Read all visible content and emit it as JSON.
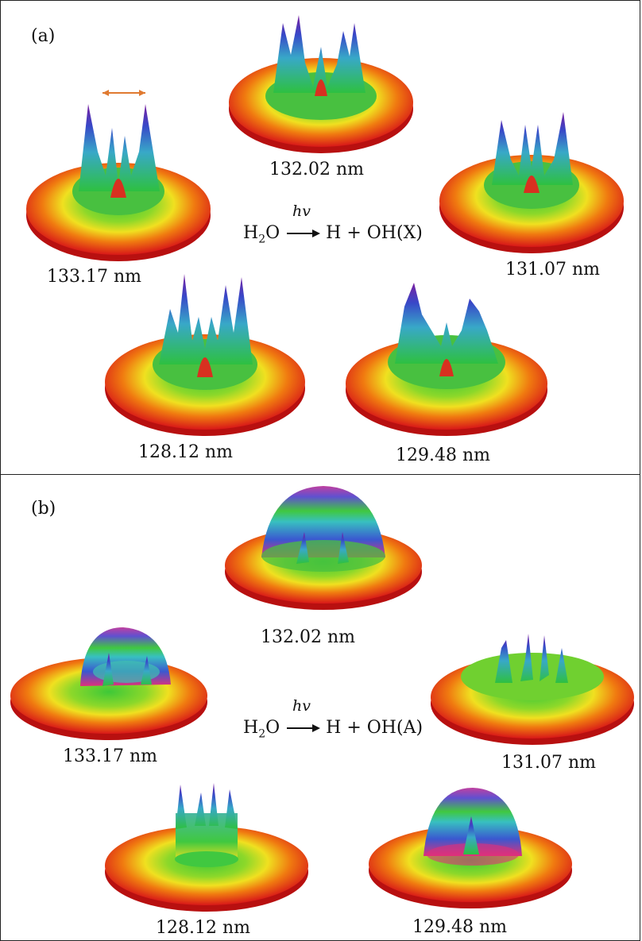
{
  "colors": {
    "rim_outer": "#d81818",
    "ring_orange": "#f07a10",
    "ring_yellow": "#f0e020",
    "ring_green": "#39c035",
    "peak_blue": "#3848c8",
    "peak_purple": "#7a1ea0",
    "arrow": "#e07a30"
  },
  "panel_a": {
    "tag": "(a)",
    "equation": {
      "photon": "hv",
      "reactant": "H",
      "sub": "2",
      "reactant_tail": "O",
      "products": "H + OH(X)"
    },
    "labels": {
      "w132": "132.02 nm",
      "w133": "133.17 nm",
      "w131": "131.07 nm",
      "w128": "128.12 nm",
      "w129": "129.48 nm"
    }
  },
  "panel_b": {
    "tag": "(b)",
    "equation": {
      "photon": "hv",
      "reactant": "H",
      "sub": "2",
      "reactant_tail": "O",
      "products": "H + OH(A)"
    },
    "labels": {
      "w132": "132.02 nm",
      "w133": "133.17 nm",
      "w131": "131.07 nm",
      "w128": "128.12 nm",
      "w129": "129.48 nm"
    }
  }
}
